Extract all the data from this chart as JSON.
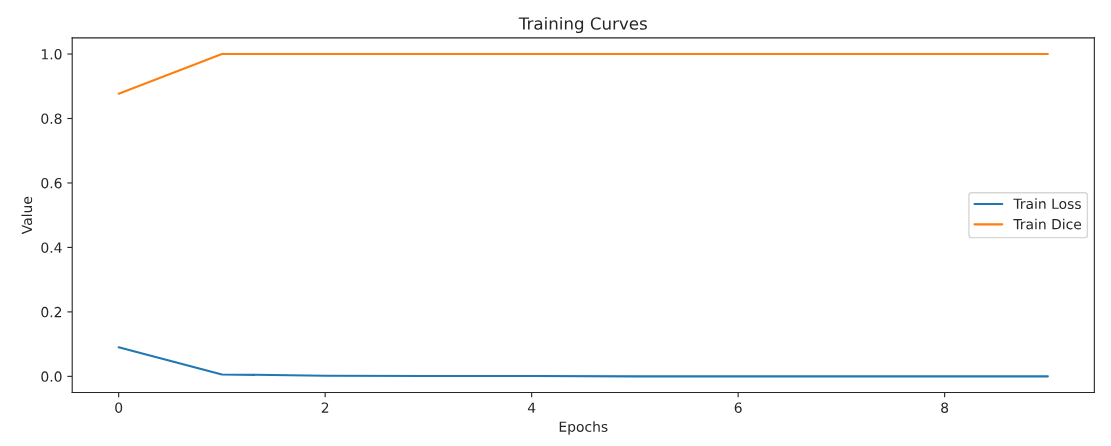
{
  "chart_data": {
    "type": "line",
    "title": "Training Curves",
    "xlabel": "Epochs",
    "ylabel": "Value",
    "x": [
      0,
      1,
      2,
      3,
      4,
      5,
      6,
      7,
      8,
      9
    ],
    "series": [
      {
        "name": "Train Loss",
        "color": "#1f77b4",
        "values": [
          0.09,
          0.006,
          0.002,
          0.001,
          0.001,
          0.0,
          0.0,
          0.0,
          0.0,
          0.0
        ]
      },
      {
        "name": "Train Dice",
        "color": "#ff7f0e",
        "values": [
          0.877,
          1.0,
          1.0,
          1.0,
          1.0,
          1.0,
          1.0,
          1.0,
          1.0,
          1.0
        ]
      }
    ],
    "xlim": [
      -0.45,
      9.45
    ],
    "xticks": [
      0,
      2,
      4,
      6,
      8
    ],
    "ylim": [
      -0.05,
      1.05
    ],
    "yticks": [
      {
        "value": 0,
        "label": "0.0"
      },
      {
        "value": 0.2,
        "label": "0.2"
      },
      {
        "value": 0.4,
        "label": "0.4"
      },
      {
        "value": 0.6,
        "label": "0.6"
      },
      {
        "value": 0.8,
        "label": "0.8"
      },
      {
        "value": 1.0,
        "label": "1.0"
      }
    ],
    "legend": "right",
    "grid": false
  }
}
